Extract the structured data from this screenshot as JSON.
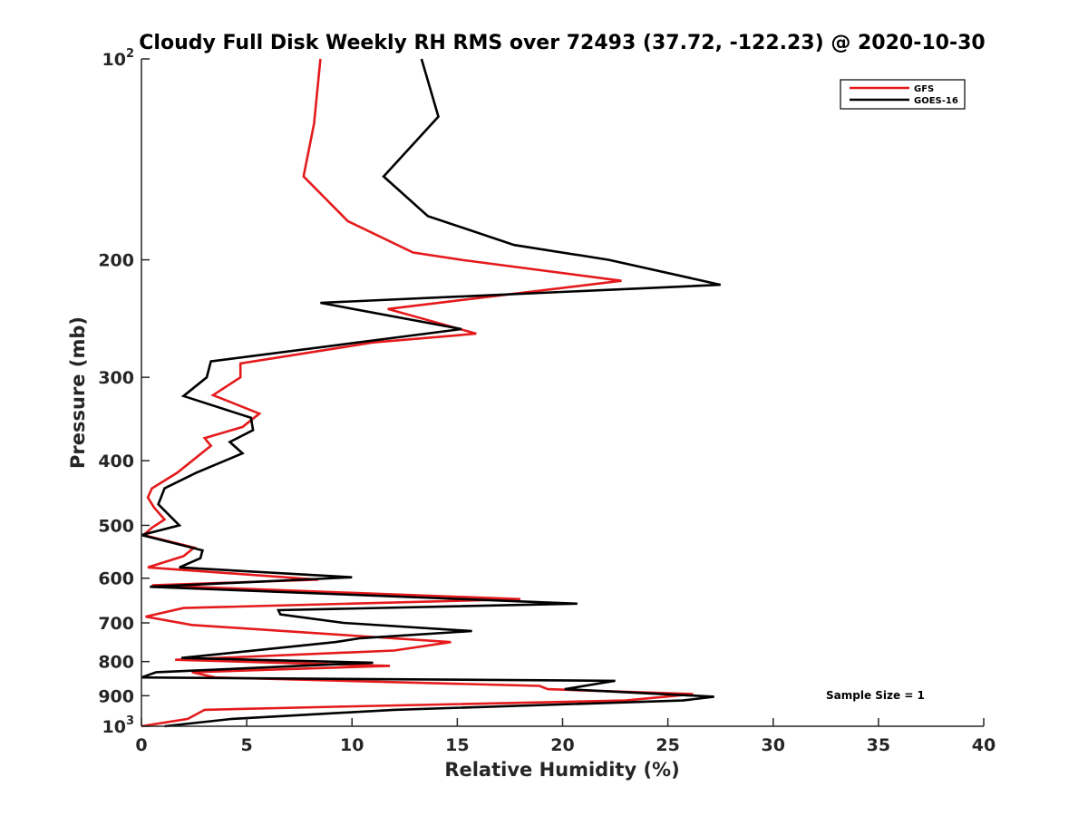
{
  "chart_data": {
    "type": "line",
    "title": "Cloudy Full Disk Weekly RH RMS over 72493 (37.72, -122.23) @ 2020-10-30",
    "xlabel": "Relative Humidity (%)",
    "ylabel": "Pressure (mb)",
    "xlim": [
      0,
      40
    ],
    "ylim": [
      100,
      1000
    ],
    "y_scale": "log",
    "y_reversed": true,
    "grid": false,
    "x_ticks": [
      0,
      5,
      10,
      15,
      20,
      25,
      30,
      35,
      40
    ],
    "x_tick_labels": [
      "0",
      "5",
      "10",
      "15",
      "20",
      "25",
      "30",
      "35",
      "40"
    ],
    "y_ticks": [
      100,
      200,
      300,
      400,
      500,
      600,
      700,
      800,
      900,
      1000
    ],
    "y_tick_labels": [
      {
        "base": "10",
        "exp": "2"
      },
      {
        "base": "200",
        "exp": ""
      },
      {
        "base": "300",
        "exp": ""
      },
      {
        "base": "400",
        "exp": ""
      },
      {
        "base": "500",
        "exp": ""
      },
      {
        "base": "600",
        "exp": ""
      },
      {
        "base": "700",
        "exp": ""
      },
      {
        "base": "800",
        "exp": ""
      },
      {
        "base": "900",
        "exp": ""
      },
      {
        "base": "10",
        "exp": "3"
      }
    ],
    "legend_position": "top-right",
    "annotation": "Sample Size = 1",
    "series": [
      {
        "name": "GFS",
        "color": "#e41a1c",
        "points": [
          [
            8.5,
            100
          ],
          [
            8.2,
            125
          ],
          [
            7.7,
            150
          ],
          [
            9.8,
            175
          ],
          [
            12.9,
            195
          ],
          [
            15.2,
            200
          ],
          [
            22.8,
            215
          ],
          [
            11.7,
            237
          ],
          [
            15.9,
            258
          ],
          [
            11.0,
            266
          ],
          [
            4.7,
            286
          ],
          [
            4.7,
            300
          ],
          [
            3.4,
            319
          ],
          [
            5.6,
            340
          ],
          [
            4.8,
            356
          ],
          [
            3.0,
            370
          ],
          [
            3.3,
            380
          ],
          [
            1.7,
            417
          ],
          [
            0.5,
            440
          ],
          [
            0.3,
            454
          ],
          [
            0.6,
            470
          ],
          [
            1.1,
            490
          ],
          [
            0.5,
            504
          ],
          [
            0.1,
            517
          ],
          [
            2.5,
            540
          ],
          [
            2.0,
            556
          ],
          [
            0.3,
            578
          ],
          [
            8.4,
            603
          ],
          [
            0.5,
            615
          ],
          [
            18.0,
            645
          ],
          [
            2.0,
            665
          ],
          [
            0.2,
            685
          ],
          [
            2.4,
            705
          ],
          [
            14.7,
            748
          ],
          [
            12.0,
            770
          ],
          [
            1.6,
            795
          ],
          [
            11.8,
            812
          ],
          [
            2.4,
            830
          ],
          [
            3.5,
            845
          ],
          [
            18.9,
            870
          ],
          [
            19.3,
            880
          ],
          [
            26.2,
            895
          ],
          [
            23.0,
            915
          ],
          [
            9.2,
            935
          ],
          [
            3.0,
            945
          ],
          [
            2.2,
            975
          ],
          [
            0.0,
            1000
          ]
        ]
      },
      {
        "name": "GOES-16",
        "color": "#000000",
        "points": [
          [
            13.3,
            100
          ],
          [
            14.1,
            122
          ],
          [
            11.5,
            150
          ],
          [
            13.6,
            172
          ],
          [
            17.7,
            190
          ],
          [
            22.2,
            200
          ],
          [
            27.5,
            218
          ],
          [
            8.5,
            232
          ],
          [
            15.2,
            254
          ],
          [
            3.3,
            284
          ],
          [
            3.1,
            300
          ],
          [
            2.0,
            320
          ],
          [
            5.2,
            345
          ],
          [
            5.3,
            360
          ],
          [
            4.2,
            375
          ],
          [
            4.8,
            390
          ],
          [
            2.6,
            417
          ],
          [
            1.1,
            440
          ],
          [
            0.8,
            465
          ],
          [
            1.8,
            500
          ],
          [
            0.0,
            517
          ],
          [
            2.9,
            545
          ],
          [
            2.8,
            560
          ],
          [
            1.8,
            578
          ],
          [
            10.0,
            598
          ],
          [
            0.4,
            618
          ],
          [
            20.7,
            655
          ],
          [
            6.5,
            670
          ],
          [
            6.6,
            680
          ],
          [
            9.6,
            700
          ],
          [
            15.7,
            720
          ],
          [
            10.4,
            738
          ],
          [
            9.2,
            748
          ],
          [
            1.9,
            790
          ],
          [
            11.0,
            803
          ],
          [
            0.7,
            830
          ],
          [
            0.0,
            845
          ],
          [
            22.5,
            855
          ],
          [
            20.1,
            880
          ],
          [
            27.2,
            903
          ],
          [
            25.7,
            915
          ],
          [
            12.0,
            945
          ],
          [
            4.3,
            975
          ],
          [
            1.1,
            1000
          ]
        ]
      }
    ]
  }
}
